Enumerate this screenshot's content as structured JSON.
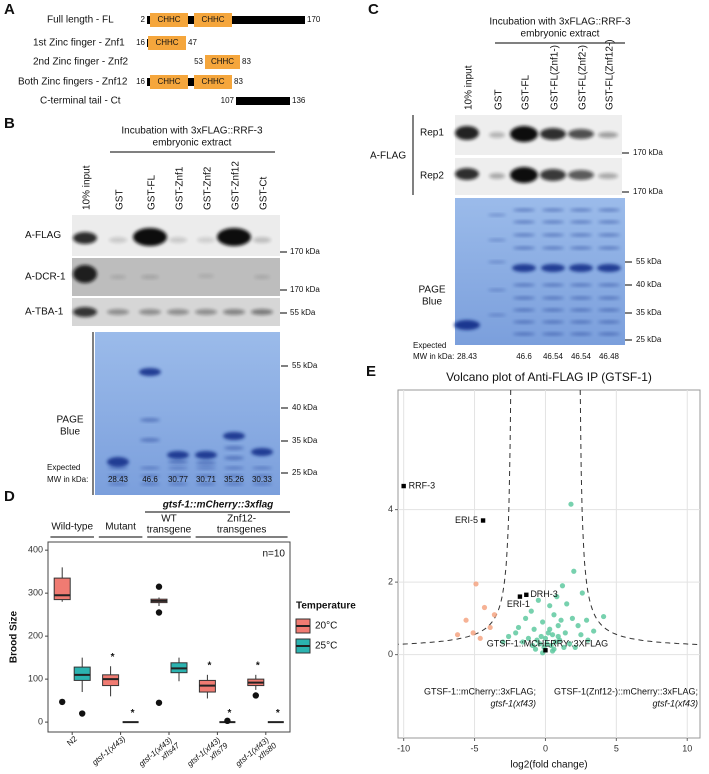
{
  "panel_a": {
    "label": "A",
    "constructs": [
      {
        "name": "Full length - FL",
        "start": 2,
        "end": 170,
        "domains": [
          "CHHC",
          "CHHC"
        ]
      },
      {
        "name": "1st Zinc finger - Znf1",
        "start": 16,
        "end": 47,
        "domains": [
          "CHHC"
        ]
      },
      {
        "name": "2nd Zinc finger - Znf2",
        "start": 53,
        "end": 83,
        "domains": [
          "CHHC"
        ]
      },
      {
        "name": "Both Zinc fingers - Znf12",
        "start": 16,
        "end": 83,
        "domains": [
          "CHHC",
          "CHHC"
        ]
      },
      {
        "name": "C-terminal tail - Ct",
        "start": 107,
        "end": 136,
        "domains": []
      }
    ]
  },
  "panel_b": {
    "label": "B",
    "incubation": [
      "Incubation with 3xFLAG::RRF-3",
      "embryonic extract"
    ],
    "lanes": [
      "10% input",
      "GST",
      "GST-FL",
      "GST-Znf1",
      "GST-Znf2",
      "GST-Znf12",
      "GST-Ct"
    ],
    "blots": [
      {
        "antibody": "A-FLAG",
        "marker": "170 kDa"
      },
      {
        "antibody": "A-DCR-1",
        "marker": "170 kDa"
      },
      {
        "antibody": "A-TBA-1",
        "marker": "55 kDa"
      }
    ],
    "gel_label": [
      "PAGE",
      "Blue"
    ],
    "gel_markers": [
      "55 kDa",
      "40 kDa",
      "35 kDa",
      "25 kDa"
    ],
    "mw_label": [
      "Expected",
      "MW in kDa:"
    ],
    "expected_mw": [
      28.43,
      46.6,
      30.77,
      30.71,
      35.26,
      30.33
    ]
  },
  "panel_c": {
    "label": "C",
    "incubation": [
      "Incubation with 3xFLAG::RRF-3",
      "embryonic extract"
    ],
    "lanes": [
      "10% input",
      "GST",
      "GST-FL",
      "GST-FL(Znf1-)",
      "GST-FL(Znf2-)",
      "GST-FL(Znf12-)"
    ],
    "antibody": "A-FLAG",
    "replicates": [
      {
        "name": "Rep1",
        "marker": "170 kDa"
      },
      {
        "name": "Rep2",
        "marker": "170 kDa"
      }
    ],
    "gel_label": [
      "PAGE",
      "Blue"
    ],
    "gel_markers": [
      "55 kDa",
      "40 kDa",
      "35 kDa",
      "25 kDa"
    ],
    "mw_label": [
      "Expected",
      "MW in kDa:"
    ],
    "expected_mw": [
      28.43,
      46.6,
      46.54,
      46.54,
      46.48
    ]
  },
  "chart_data": [
    {
      "type": "box",
      "label": "D",
      "header": {
        "title": "gtsf-1::mCherry::3xflag",
        "groups": [
          [
            "Wild-type"
          ],
          [
            "Mutant"
          ],
          [
            "WT",
            "transgene"
          ],
          [
            "Znf12-",
            "transgenes"
          ]
        ]
      },
      "annotation": "n=10",
      "ylabel": "Brood Size",
      "categories": [
        "N2",
        "gtsf-1(xf43)",
        "gtsf-1(xf43) xfIs47",
        "gtsf-1(xf43) xfIs79",
        "gtsf-1(xf43) xfIs80"
      ],
      "ylim": [
        -23,
        419
      ],
      "yticks": [
        0,
        100,
        200,
        300,
        400
      ],
      "grid": false,
      "legend": {
        "title": "Temperature",
        "position": "right"
      },
      "series": [
        {
          "name": "20°C",
          "color": "#f07b72",
          "min": [
            280,
            60,
            270,
            55,
            75
          ],
          "q1": [
            285,
            85,
            278,
            70,
            85
          ],
          "median": [
            295,
            100,
            282,
            85,
            92
          ],
          "q3": [
            335,
            110,
            286,
            97,
            100
          ],
          "max": [
            360,
            130,
            290,
            110,
            110
          ],
          "outliers": [
            [
              47
            ],
            [],
            [
              315,
              255,
              45
            ],
            [],
            [
              62
            ]
          ],
          "significance": [
            null,
            "*",
            null,
            "*",
            "*"
          ]
        },
        {
          "name": "25°C",
          "color": "#2bb3b0",
          "min": [
            70,
            0,
            95,
            0,
            0
          ],
          "q1": [
            97,
            0,
            115,
            0,
            0
          ],
          "median": [
            110,
            0,
            125,
            0,
            0
          ],
          "q3": [
            128,
            0,
            138,
            0,
            0
          ],
          "max": [
            150,
            0,
            150,
            0,
            0
          ],
          "outliers": [
            [
              20
            ],
            [],
            [],
            [
              3
            ],
            []
          ],
          "significance": [
            null,
            "*",
            null,
            "*",
            "*"
          ]
        }
      ]
    },
    {
      "type": "scatter",
      "label": "E",
      "title": "Volcano plot of Anti-FLAG IP (GTSF-1)",
      "xlabel": "log2(fold change)",
      "xlim": [
        -10.4,
        10.9
      ],
      "ylim": [
        -2.3,
        7.3
      ],
      "xticks": [
        -10,
        -5,
        0,
        5,
        10
      ],
      "yticks": [
        0,
        2,
        4
      ],
      "grid": true,
      "series": [
        {
          "color": "#f4a582",
          "x": [
            -4.9,
            -5.6,
            -4.3,
            -5.1,
            -3.9,
            -6.2,
            -4.6,
            -3.6
          ],
          "y": [
            1.95,
            0.95,
            1.3,
            0.6,
            0.75,
            0.55,
            0.45,
            1.1
          ]
        },
        {
          "color": "#5fc9a0",
          "x": [
            1.8,
            2.0,
            2.6,
            4.1,
            2.9,
            1.2,
            0.8,
            -0.5,
            -1.0,
            0.3,
            0.6,
            -0.2,
            1.5,
            -1.4,
            0.9,
            -0.8,
            0.2,
            1.1,
            -0.3,
            0.5,
            1.9,
            -1.9,
            2.3,
            -2.1,
            0.1,
            -0.6,
            0.7,
            1.4,
            -1.2,
            0.4,
            -0.1,
            1.0,
            -0.4,
            0.6,
            2.5,
            3.4,
            -2.6,
            1.7,
            -1.6,
            0.0,
            0.3,
            -0.9,
            1.3,
            -0.7,
            0.9,
            3.0,
            -3.0,
            2.1,
            0.5,
            -0.2
          ],
          "y": [
            4.15,
            2.3,
            1.7,
            1.05,
            0.95,
            1.9,
            1.6,
            1.5,
            1.2,
            1.35,
            1.1,
            0.9,
            1.4,
            1.0,
            0.8,
            0.7,
            0.6,
            0.95,
            0.5,
            0.55,
            1.0,
            0.75,
            0.8,
            0.6,
            0.3,
            0.4,
            0.35,
            0.6,
            0.45,
            0.25,
            0.2,
            0.4,
            0.3,
            0.15,
            0.55,
            0.65,
            0.5,
            0.3,
            0.35,
            0.45,
            0.7,
            0.25,
            0.2,
            0.15,
            0.5,
            0.4,
            0.35,
            0.2,
            0.1,
            0.05
          ]
        },
        {
          "color": "#000000",
          "labels": [
            "RRF-3",
            "ERI-5",
            "DRH-3",
            "ERI-1",
            "GTSF-1::MCHERRY::3XFLAG"
          ],
          "x": [
            -10.0,
            -4.4,
            -1.35,
            -1.8,
            0.0
          ],
          "y": [
            4.65,
            3.7,
            1.65,
            1.6,
            0.12
          ]
        }
      ],
      "annotations": [
        [
          "GTSF-1::mCherry::3xFLAG;",
          "gtsf-1(xf43)"
        ],
        [
          "GTSF-1(Znf12-)::mCherry::3xFLAG;",
          "gtsf-1(xf43)"
        ]
      ]
    }
  ]
}
